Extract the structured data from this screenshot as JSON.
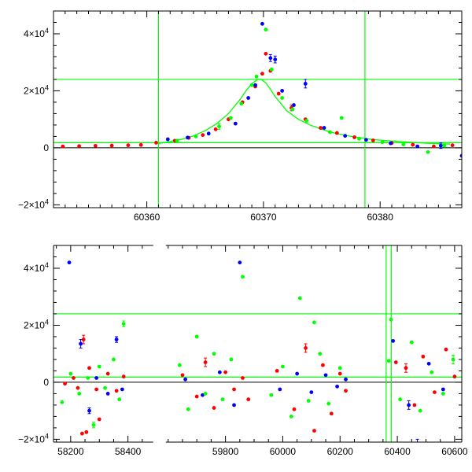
{
  "chart_data": [
    {
      "type": "scatter",
      "title": "",
      "xlabel": "",
      "ylabel": "",
      "xlim": [
        60352,
        60387
      ],
      "ylim": [
        -21000,
        48000
      ],
      "grid": false,
      "x_ticks": [
        60360,
        60370,
        60380
      ],
      "x_tick_labels": [
        "60360",
        "60370",
        "60380"
      ],
      "y_ticks": [
        -20000,
        0,
        20000,
        40000
      ],
      "y_tick_labels": [
        {
          "base": "−2×10",
          "exp": "4"
        },
        {
          "base": "0",
          "exp": ""
        },
        {
          "base": "2×10",
          "exp": "4"
        },
        {
          "base": "4×10",
          "exp": "4"
        }
      ],
      "colors": {
        "red": "#ff0000",
        "blue": "#0000ff",
        "green": "#00ff00",
        "guides": "#00ff00"
      },
      "guides": {
        "vlines": [
          60361,
          60378.7
        ],
        "hlines": [
          24000,
          1800
        ]
      },
      "model_curve": {
        "x": [
          60361,
          60362,
          60363,
          60364,
          60365,
          60366,
          60367,
          60368,
          60368.5,
          60369,
          60369.5,
          60369.8,
          60370.2,
          60370.6,
          60371,
          60371.5,
          60372,
          60373,
          60374,
          60375,
          60376,
          60377,
          60378,
          60379,
          60380,
          60382,
          60384,
          60386
        ],
        "y": [
          1500,
          2200,
          3000,
          4200,
          6000,
          8500,
          12000,
          17000,
          20000,
          22500,
          24000,
          24000,
          22800,
          20500,
          18000,
          15500,
          13000,
          10000,
          8000,
          6500,
          5300,
          4400,
          3700,
          3100,
          2700,
          2100,
          1600,
          1300
        ]
      },
      "series": [
        {
          "name": "",
          "color": "#ff0000",
          "x": [
            60352.8,
            60354.2,
            60355.6,
            60357,
            60358.4,
            60359.5,
            60360.8,
            60362.4,
            60363.6,
            60364.8,
            60365.9,
            60367,
            60368.2,
            60369.3,
            60369.9,
            60370.2,
            60370.6,
            60371.3,
            60372.4,
            60373.6,
            60374.9,
            60376.3,
            60377.8,
            60379.4,
            60381,
            60382.8,
            60384.6,
            60386.2
          ],
          "y": [
            500,
            600,
            700,
            800,
            900,
            1000,
            1800,
            2500,
            3500,
            4500,
            6500,
            10000,
            16000,
            21500,
            26000,
            33000,
            27000,
            19000,
            14000,
            10000,
            7000,
            5200,
            3700,
            2600,
            1700,
            1100,
            500,
            900
          ],
          "err": [
            0,
            0,
            0,
            0,
            0,
            0,
            0,
            0,
            0,
            0,
            0,
            0,
            0,
            0,
            0,
            0,
            0,
            0,
            1000,
            0,
            0,
            0,
            0,
            0,
            0,
            0,
            0,
            0
          ]
        },
        {
          "name": "",
          "color": "#0000ff",
          "x": [
            60361.8,
            60363.5,
            60365.3,
            60367.6,
            60368.7,
            60369.3,
            60369.9,
            60370.6,
            60371,
            60371.6,
            60372.6,
            60373.6,
            60375.2,
            60377,
            60378.8,
            60380.9,
            60383.2,
            60385.2,
            60387
          ],
          "y": [
            3000,
            3600,
            5000,
            8500,
            17500,
            22000,
            43500,
            31500,
            31000,
            20000,
            15000,
            22500,
            7000,
            4200,
            2800,
            1600,
            500,
            800,
            -2800
          ],
          "err": [
            0,
            0,
            0,
            0,
            0,
            0,
            0,
            1200,
            1200,
            0,
            0,
            1500,
            0,
            0,
            0,
            0,
            0,
            1000,
            0
          ]
        },
        {
          "name": "",
          "color": "#00ff00",
          "x": [
            60362.6,
            60364.2,
            60366.2,
            60367.2,
            60368.1,
            60369,
            60369.4,
            60370.2,
            60370.7,
            60371.6,
            60372.5,
            60373.7,
            60375.7,
            60376.7,
            60378.2,
            60380.2,
            60382,
            60384.1,
            60385.5
          ],
          "y": [
            2500,
            4000,
            7500,
            10500,
            15500,
            22000,
            25000,
            41500,
            27500,
            17500,
            13500,
            9500,
            5500,
            10500,
            3200,
            2000,
            1200,
            -1500,
            700
          ],
          "err": [
            0,
            0,
            1000,
            0,
            0,
            0,
            0,
            0,
            0,
            0,
            0,
            0,
            0,
            0,
            0,
            0,
            0,
            0,
            0
          ]
        }
      ]
    },
    {
      "type": "scatter",
      "title": "",
      "xlabel": "",
      "ylabel": "",
      "xlim": [
        58140,
        60625
      ],
      "ylim": [
        -21000,
        48000
      ],
      "grid": false,
      "axis_break": true,
      "segments": [
        {
          "range": [
            58140,
            58480
          ]
        },
        {
          "range": [
            59600,
            60625
          ]
        }
      ],
      "x_ticks": [
        58200,
        58400,
        59800,
        60000,
        60200,
        60400,
        60600
      ],
      "x_tick_labels": [
        "58200",
        "58400",
        "59800",
        "60000",
        "60200",
        "60400",
        "60600"
      ],
      "y_ticks": [
        -20000,
        0,
        20000,
        40000
      ],
      "y_tick_labels": [
        {
          "base": "−2×10",
          "exp": "4"
        },
        {
          "base": "0",
          "exp": ""
        },
        {
          "base": "2×10",
          "exp": "4"
        },
        {
          "base": "4×10",
          "exp": "4"
        }
      ],
      "colors": {
        "red": "#ff0000",
        "blue": "#0000ff",
        "green": "#00ff00",
        "guides": "#00ff00"
      },
      "guides": {
        "vlines": [
          60361,
          60378.7
        ],
        "hlines": [
          24000,
          1800
        ]
      },
      "series": [
        {
          "name": "",
          "color": "#ff0000",
          "x": [
            58180,
            58210,
            58225,
            58245,
            58265,
            58290,
            58330,
            58360,
            58385,
            58240,
            58255,
            58300,
            59650,
            59700,
            59730,
            59760,
            59800,
            59830,
            59860,
            59880,
            59980,
            60040,
            60080,
            60110,
            60140,
            60170,
            60200,
            60220,
            60395,
            60430,
            60460,
            60490,
            60530,
            60570,
            60600
          ],
          "y": [
            -500,
            1500,
            -2000,
            15000,
            5000,
            -2500,
            3000,
            -3000,
            2000,
            -18000,
            -17500,
            -13000,
            2500,
            -5000,
            7000,
            -9000,
            3500,
            -2500,
            1500,
            -6000,
            4000,
            -9500,
            12000,
            -17000,
            6000,
            -11000,
            3000,
            -3000,
            7000,
            5000,
            -8000,
            9000,
            -3500,
            11500,
            2000
          ],
          "err": [
            0,
            0,
            0,
            1500,
            0,
            0,
            0,
            0,
            0,
            0,
            0,
            0,
            0,
            0,
            1500,
            0,
            0,
            0,
            0,
            0,
            0,
            0,
            1500,
            0,
            0,
            0,
            0,
            0,
            0,
            1500,
            0,
            0,
            0,
            0,
            0
          ]
        },
        {
          "name": "",
          "color": "#0000ff",
          "x": [
            58195,
            58235,
            58265,
            58290,
            58330,
            58360,
            58380,
            59660,
            59720,
            59780,
            59830,
            59850,
            59990,
            60050,
            60100,
            60150,
            60190,
            60220,
            60385,
            60440,
            60470,
            60510,
            60560
          ],
          "y": [
            42000,
            13500,
            -10000,
            1500,
            -4000,
            15000,
            -2500,
            1000,
            -4500,
            3500,
            -8000,
            42000,
            -2500,
            3000,
            -3500,
            2500,
            -1500,
            1000,
            14500,
            -8000,
            -21500,
            6500,
            -2500
          ],
          "err": [
            0,
            1500,
            1000,
            0,
            0,
            1000,
            0,
            0,
            0,
            0,
            0,
            0,
            0,
            0,
            0,
            0,
            0,
            0,
            0,
            1500,
            1500,
            0,
            0
          ]
        },
        {
          "name": "",
          "color": "#00ff00",
          "x": [
            58170,
            58200,
            58230,
            58260,
            58280,
            58300,
            58320,
            58350,
            58370,
            58385,
            59640,
            59670,
            59700,
            59730,
            59760,
            59790,
            59820,
            59860,
            59960,
            60000,
            60030,
            60060,
            60090,
            60110,
            60130,
            60160,
            60200,
            60370,
            60378,
            60410,
            60450,
            60480,
            60520,
            60560,
            60595
          ],
          "y": [
            -7000,
            3000,
            -4000,
            1500,
            -15000,
            5500,
            -2000,
            8000,
            -6000,
            20500,
            6000,
            -9500,
            16000,
            -4000,
            10000,
            -6000,
            8000,
            37000,
            -4500,
            5500,
            -12000,
            29500,
            -6500,
            21000,
            10000,
            -7500,
            5000,
            7500,
            22000,
            -6000,
            14000,
            -10000,
            3500,
            -4000,
            8000
          ],
          "err": [
            0,
            0,
            0,
            0,
            1000,
            0,
            0,
            0,
            0,
            1000,
            0,
            0,
            0,
            0,
            0,
            0,
            0,
            0,
            0,
            0,
            0,
            0,
            0,
            0,
            0,
            0,
            0,
            0,
            0,
            0,
            0,
            0,
            0,
            0,
            1500
          ]
        }
      ]
    }
  ]
}
